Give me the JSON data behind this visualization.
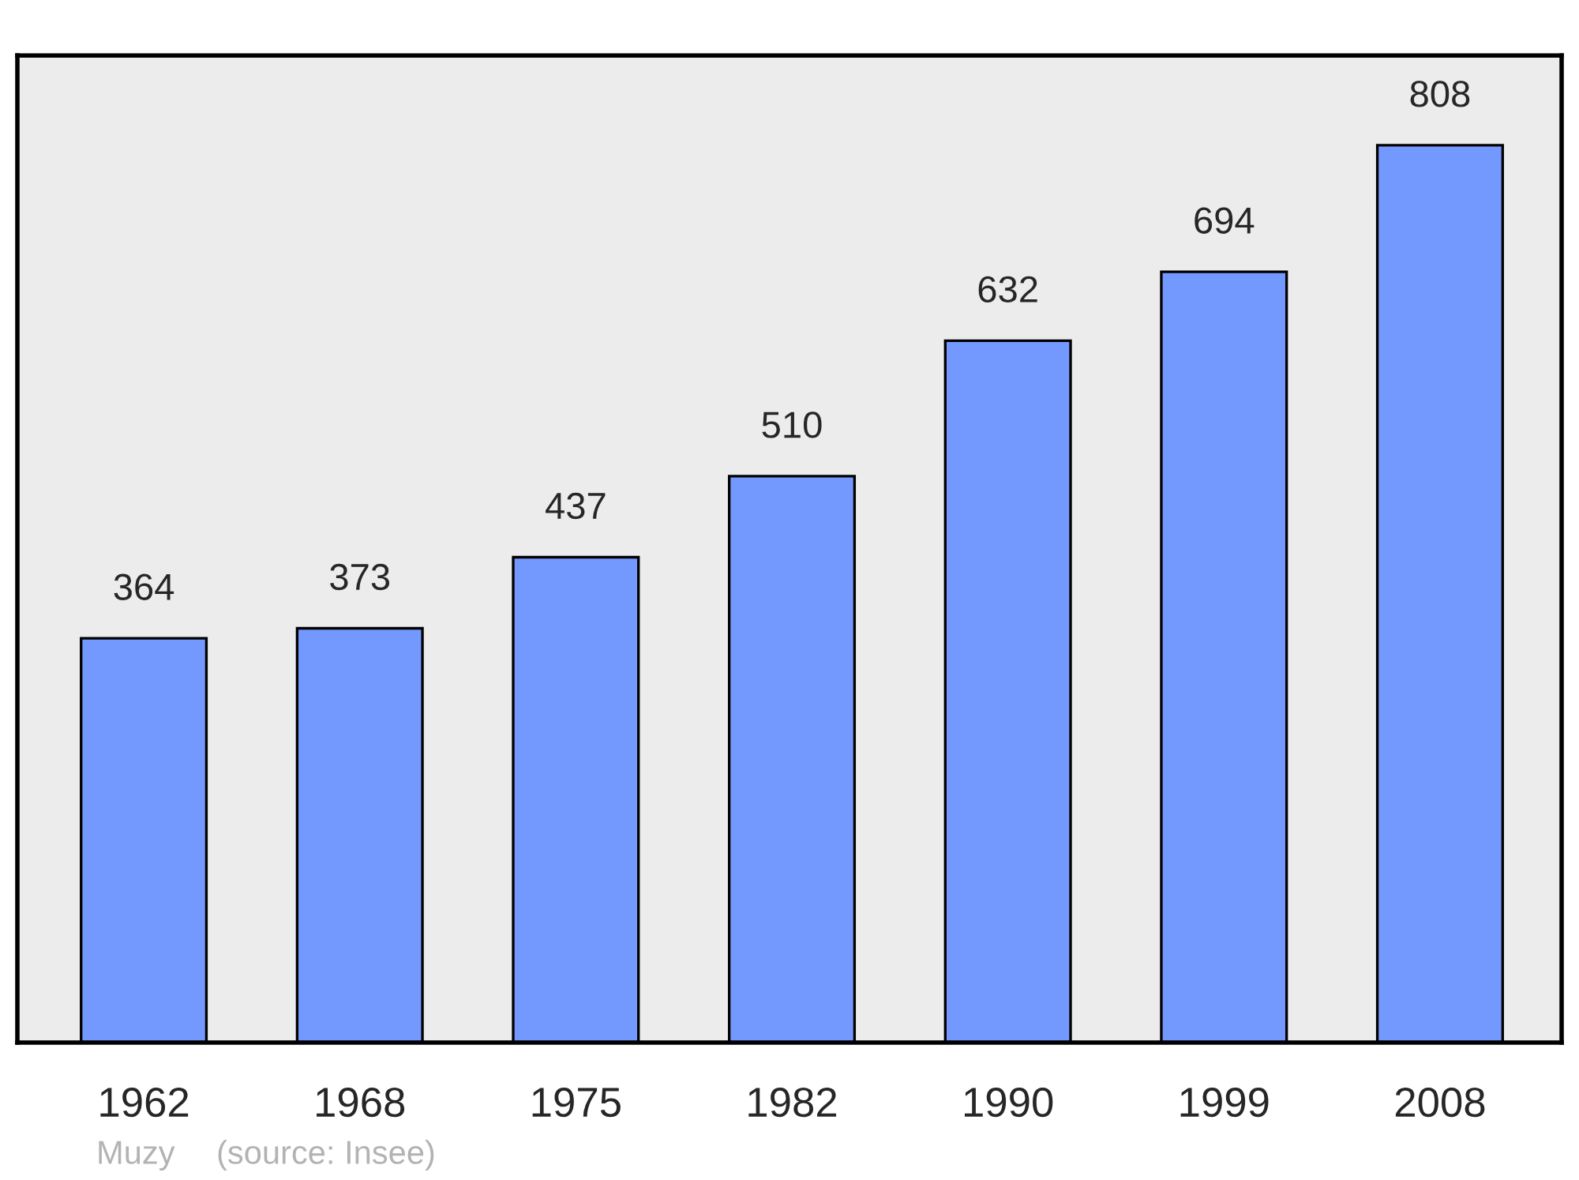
{
  "chart_data": {
    "type": "bar",
    "categories": [
      "1962",
      "1968",
      "1975",
      "1982",
      "1990",
      "1999",
      "2008"
    ],
    "values": [
      364,
      373,
      437,
      510,
      632,
      694,
      808
    ],
    "color": "#7399ff",
    "data_labels": true,
    "tick_labels": "x",
    "grid": false,
    "annotations": [
      "Muzy",
      "(source: Insee)"
    ]
  }
}
